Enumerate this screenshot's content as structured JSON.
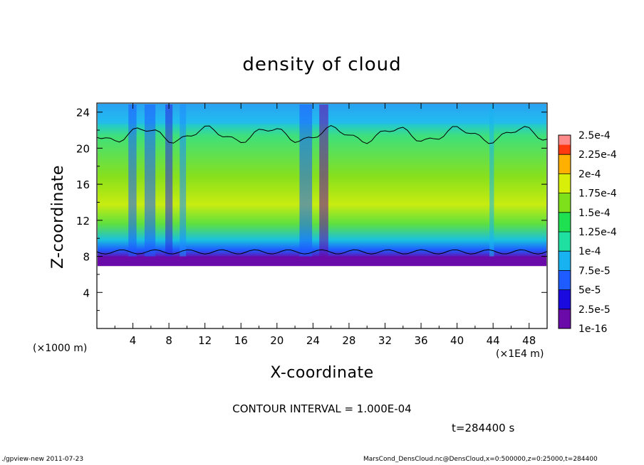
{
  "chart_data": {
    "type": "heatmap",
    "title": "density of cloud",
    "xlabel": "X-coordinate",
    "ylabel": "Z-coordinate",
    "x_unit_label": "(×1E4 m)",
    "y_unit_label": "(×1000 m)",
    "xlim": [
      0,
      50
    ],
    "ylim": [
      0,
      25
    ],
    "x_ticks": [
      "4",
      "8",
      "12",
      "16",
      "20",
      "24",
      "28",
      "32",
      "36",
      "40",
      "44",
      "48"
    ],
    "y_ticks": [
      "4",
      "8",
      "12",
      "16",
      "20",
      "24"
    ],
    "colorbar_labels": [
      "1e-16",
      "2.5e-5",
      "5e-5",
      "7.5e-5",
      "1e-4",
      "1.25e-4",
      "1.5e-4",
      "1.75e-4",
      "2e-4",
      "2.25e-4",
      "2.5e-4"
    ],
    "colorbar_colors": [
      "#6a0aa8",
      "#1a0ae0",
      "#1e5cff",
      "#19b2f0",
      "#1fe0a0",
      "#1ee050",
      "#7ee01a",
      "#d8ef0a",
      "#ffb000",
      "#ff3a10",
      "#ff8a8a"
    ],
    "contour_interval_label": "CONTOUR INTERVAL = 1.000E-04",
    "cloud_base_z": 7,
    "cloud_top_z": 24.5
  },
  "time_label": "t=284400 s",
  "footer": {
    "left": "./gpview-new   2011-07-23",
    "right": "MarsCond_DensCloud.nc@DensCloud,x=0:500000,z=0:25000,t=284400"
  }
}
